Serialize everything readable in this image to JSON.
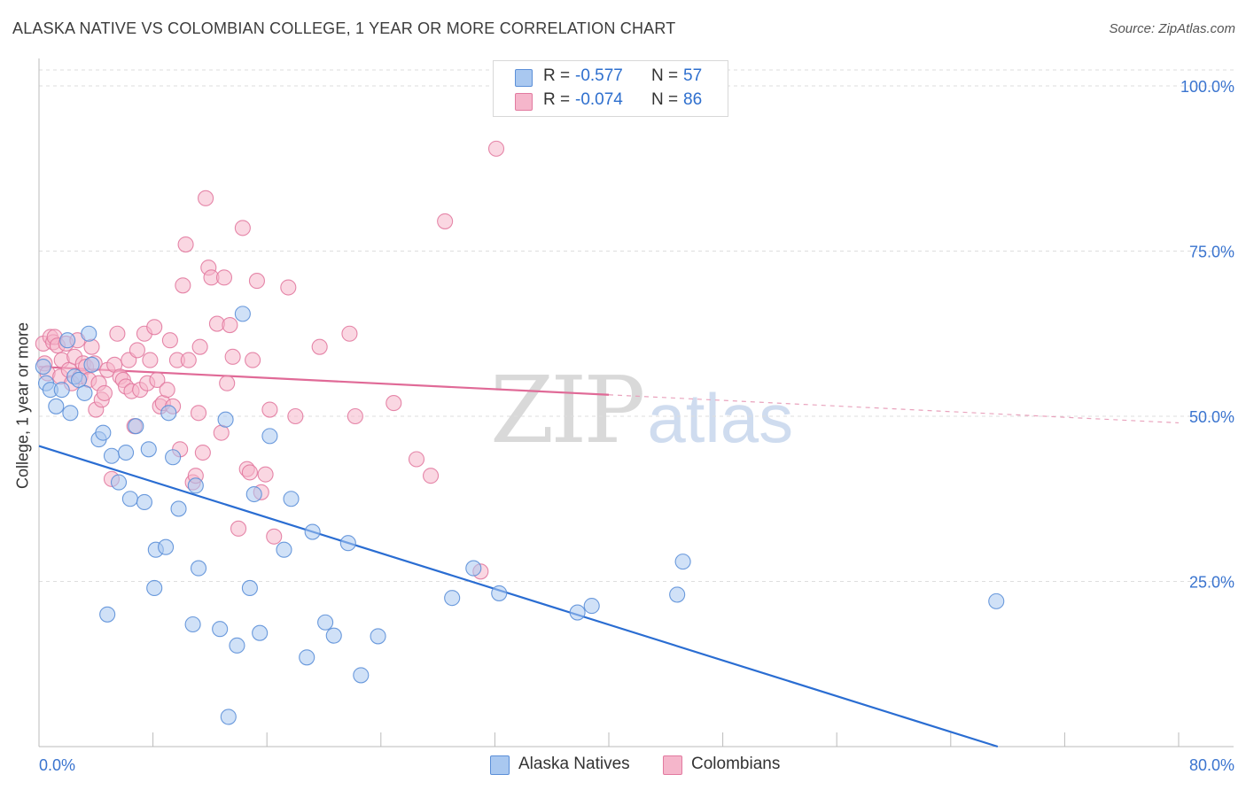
{
  "title": "ALASKA NATIVE VS COLOMBIAN COLLEGE, 1 YEAR OR MORE CORRELATION CHART",
  "source": "Source: ZipAtlas.com",
  "watermark": {
    "zip": "ZIP",
    "atlas": "atlas"
  },
  "legend": [
    {
      "r_label": "R =",
      "r_value": "-0.577",
      "n_label": "N =",
      "n_value": "57",
      "color": "#a9c8f0"
    },
    {
      "r_label": "R =",
      "r_value": "-0.074",
      "n_label": "N =",
      "n_value": "86",
      "color": "#f5b6cb"
    }
  ],
  "chart_data": {
    "type": "scatter",
    "title": "ALASKA NATIVE VS COLOMBIAN COLLEGE, 1 YEAR OR MORE CORRELATION CHART",
    "xlabel": "",
    "ylabel": "College, 1 year or more",
    "xlim": [
      0,
      80
    ],
    "ylim": [
      0,
      100
    ],
    "x_tick_labels": {
      "min": "0.0%",
      "max": "80.0%"
    },
    "y_ticks": [
      25,
      50,
      75,
      100
    ],
    "y_tick_labels": [
      "25.0%",
      "50.0%",
      "75.0%",
      "100.0%"
    ],
    "grid": true,
    "series": [
      {
        "name": "Alaska Natives",
        "color": "#5b8fd8",
        "fill": "#a9c8f0",
        "trend": {
          "x0": 0,
          "y0": 45.5,
          "x1": 67.3,
          "y1": 0,
          "solid_to": 67.3
        },
        "points": [
          [
            0.3,
            57.5
          ],
          [
            0.5,
            55.0
          ],
          [
            0.8,
            54.0
          ],
          [
            1.2,
            51.5
          ],
          [
            1.6,
            54.0
          ],
          [
            2.0,
            61.5
          ],
          [
            2.2,
            50.5
          ],
          [
            2.5,
            56.0
          ],
          [
            2.8,
            55.5
          ],
          [
            3.2,
            53.5
          ],
          [
            3.5,
            62.5
          ],
          [
            3.7,
            57.8
          ],
          [
            4.2,
            46.5
          ],
          [
            4.5,
            47.5
          ],
          [
            4.8,
            20.0
          ],
          [
            5.1,
            44.0
          ],
          [
            5.6,
            40.0
          ],
          [
            6.1,
            44.5
          ],
          [
            6.4,
            37.5
          ],
          [
            6.8,
            48.5
          ],
          [
            7.4,
            37.0
          ],
          [
            7.7,
            45.0
          ],
          [
            8.1,
            24.0
          ],
          [
            8.2,
            29.8
          ],
          [
            8.9,
            30.2
          ],
          [
            9.1,
            50.5
          ],
          [
            9.4,
            43.8
          ],
          [
            9.8,
            36.0
          ],
          [
            10.8,
            18.5
          ],
          [
            11.0,
            39.5
          ],
          [
            11.2,
            27.0
          ],
          [
            12.7,
            17.8
          ],
          [
            13.1,
            49.5
          ],
          [
            13.3,
            4.5
          ],
          [
            13.9,
            15.3
          ],
          [
            14.3,
            65.5
          ],
          [
            14.8,
            24.0
          ],
          [
            15.1,
            38.2
          ],
          [
            15.5,
            17.2
          ],
          [
            16.2,
            47.0
          ],
          [
            17.2,
            29.8
          ],
          [
            17.7,
            37.5
          ],
          [
            18.8,
            13.5
          ],
          [
            19.2,
            32.5
          ],
          [
            20.1,
            18.8
          ],
          [
            20.7,
            16.8
          ],
          [
            21.7,
            30.8
          ],
          [
            22.6,
            10.8
          ],
          [
            23.8,
            16.7
          ],
          [
            29.0,
            22.5
          ],
          [
            30.5,
            27.0
          ],
          [
            32.3,
            23.2
          ],
          [
            37.8,
            20.3
          ],
          [
            38.8,
            21.3
          ],
          [
            44.8,
            23.0
          ],
          [
            45.2,
            28.0
          ],
          [
            67.2,
            22.0
          ]
        ]
      },
      {
        "name": "Colombians",
        "color": "#e27aa0",
        "fill": "#f5b6cb",
        "trend": {
          "x0": 0,
          "y0": 57.5,
          "x1": 80,
          "y1": 49.0,
          "solid_to": 40.0
        },
        "points": [
          [
            0.3,
            61.0
          ],
          [
            0.4,
            58.0
          ],
          [
            0.6,
            56.5
          ],
          [
            0.8,
            62.0
          ],
          [
            1.0,
            61.2
          ],
          [
            1.1,
            62.0
          ],
          [
            1.3,
            60.7
          ],
          [
            1.5,
            56.0
          ],
          [
            1.6,
            58.5
          ],
          [
            1.9,
            61.0
          ],
          [
            2.1,
            57.0
          ],
          [
            2.3,
            55.0
          ],
          [
            2.5,
            59.0
          ],
          [
            2.7,
            61.5
          ],
          [
            2.9,
            56.0
          ],
          [
            3.1,
            58.0
          ],
          [
            3.3,
            57.5
          ],
          [
            3.5,
            55.5
          ],
          [
            3.7,
            60.5
          ],
          [
            3.9,
            58.0
          ],
          [
            4.0,
            51.0
          ],
          [
            4.2,
            55.0
          ],
          [
            4.4,
            52.5
          ],
          [
            4.6,
            53.5
          ],
          [
            4.8,
            57.0
          ],
          [
            5.1,
            40.5
          ],
          [
            5.3,
            57.8
          ],
          [
            5.5,
            62.5
          ],
          [
            5.7,
            56.0
          ],
          [
            5.9,
            55.5
          ],
          [
            6.1,
            54.5
          ],
          [
            6.3,
            58.5
          ],
          [
            6.5,
            53.8
          ],
          [
            6.7,
            48.5
          ],
          [
            6.9,
            60.0
          ],
          [
            7.1,
            54.0
          ],
          [
            7.4,
            62.5
          ],
          [
            7.6,
            55.0
          ],
          [
            7.8,
            58.5
          ],
          [
            8.1,
            63.5
          ],
          [
            8.3,
            55.5
          ],
          [
            8.5,
            51.5
          ],
          [
            8.7,
            52.0
          ],
          [
            9.0,
            54.0
          ],
          [
            9.2,
            61.5
          ],
          [
            9.4,
            51.5
          ],
          [
            9.7,
            58.5
          ],
          [
            9.9,
            45.0
          ],
          [
            10.1,
            69.8
          ],
          [
            10.3,
            76.0
          ],
          [
            10.5,
            58.5
          ],
          [
            10.8,
            40.0
          ],
          [
            11.0,
            41.0
          ],
          [
            11.2,
            50.5
          ],
          [
            11.5,
            44.5
          ],
          [
            11.7,
            83.0
          ],
          [
            11.9,
            72.5
          ],
          [
            12.1,
            71.0
          ],
          [
            12.5,
            64.0
          ],
          [
            12.8,
            47.5
          ],
          [
            13.0,
            71.0
          ],
          [
            13.2,
            55.0
          ],
          [
            13.4,
            63.8
          ],
          [
            13.6,
            59.0
          ],
          [
            14.0,
            33.0
          ],
          [
            14.3,
            78.5
          ],
          [
            14.6,
            42.0
          ],
          [
            14.8,
            41.5
          ],
          [
            15.0,
            58.5
          ],
          [
            15.3,
            70.5
          ],
          [
            15.6,
            38.5
          ],
          [
            15.9,
            41.2
          ],
          [
            16.2,
            51.0
          ],
          [
            16.5,
            31.8
          ],
          [
            17.5,
            69.5
          ],
          [
            18.0,
            50.0
          ],
          [
            19.7,
            60.5
          ],
          [
            21.8,
            62.5
          ],
          [
            22.2,
            50.0
          ],
          [
            24.9,
            52.0
          ],
          [
            26.5,
            43.5
          ],
          [
            27.5,
            41.0
          ],
          [
            28.5,
            79.5
          ],
          [
            31.0,
            26.5
          ],
          [
            32.1,
            90.5
          ],
          [
            11.3,
            60.5
          ]
        ]
      }
    ]
  }
}
